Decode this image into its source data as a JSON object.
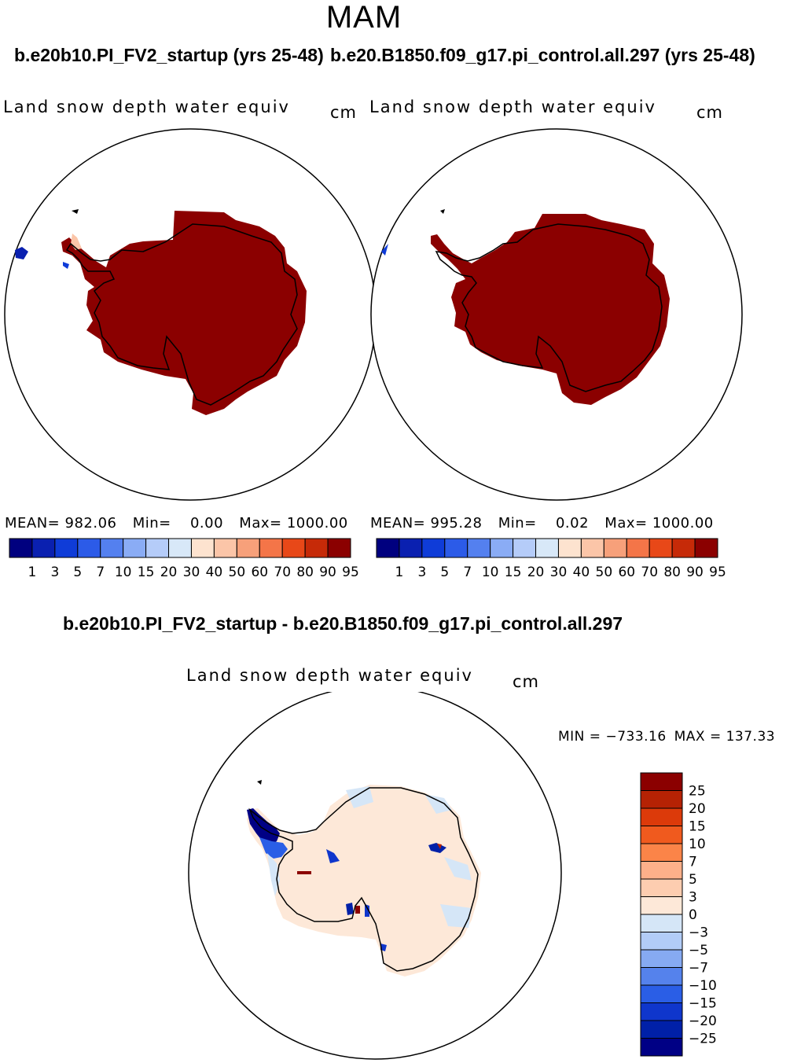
{
  "season": "MAM",
  "panels": [
    {
      "case_title": "b.e20b10.PI_FV2_startup (yrs 25-48)",
      "variable": "Land snow depth water equiv",
      "units": "cm",
      "stats": {
        "mean_label": "MEAN=",
        "mean": "982.06",
        "min_label": "Min=",
        "min": "0.00",
        "max_label": "Max=",
        "max": "1000.00"
      }
    },
    {
      "case_title": "b.e20.B1850.f09_g17.pi_control.all.297 (yrs 25-48)",
      "variable": "Land snow depth water equiv",
      "units": "cm",
      "stats": {
        "mean_label": "MEAN=",
        "mean": "995.28",
        "min_label": "Min=",
        "min": "0.02",
        "max_label": "Max=",
        "max": "1000.00"
      }
    }
  ],
  "abs_colorbar": {
    "colors": [
      "#00007f",
      "#0a20b0",
      "#0f3cd8",
      "#2c5be8",
      "#5480ef",
      "#8aacf5",
      "#b5ccf9",
      "#d8e8f8",
      "#fde3cf",
      "#fbc5a8",
      "#f7a07a",
      "#f47548",
      "#e84818",
      "#c62a08",
      "#8b0000"
    ],
    "labels": [
      "1",
      "3",
      "5",
      "7",
      "10",
      "15",
      "20",
      "30",
      "40",
      "50",
      "60",
      "70",
      "80",
      "90",
      "95"
    ]
  },
  "diff": {
    "title": "b.e20b10.PI_FV2_startup - b.e20.B1850.f09_g17.pi_control.all.297",
    "variable": "Land snow depth water equiv",
    "units": "cm",
    "min_label": "MIN =",
    "min": "−733.16",
    "max_label": "MAX =",
    "max": "137.33",
    "colorbar": {
      "colors": [
        "#8b0000",
        "#b52204",
        "#dc3a0a",
        "#f05a1e",
        "#fb8448",
        "#fdb08a",
        "#fdcdb0",
        "#fde8d8",
        "#d5e6f7",
        "#b2ccf7",
        "#86aaf2",
        "#5582ec",
        "#2a5ee6",
        "#0f36cc",
        "#0020a8",
        "#000085"
      ],
      "labels": [
        "25",
        "20",
        "15",
        "10",
        "7",
        "5",
        "3",
        "0",
        "−3",
        "−5",
        "−7",
        "−10",
        "−15",
        "−20",
        "−25"
      ]
    }
  },
  "map_colors": {
    "ice_abs": "#8b0000",
    "diff_fill": "#fde8d8",
    "diff_neg_light": "#d5e6f7",
    "diff_neg_strong": "#0020a8",
    "diff_pos_strong": "#b52204"
  }
}
